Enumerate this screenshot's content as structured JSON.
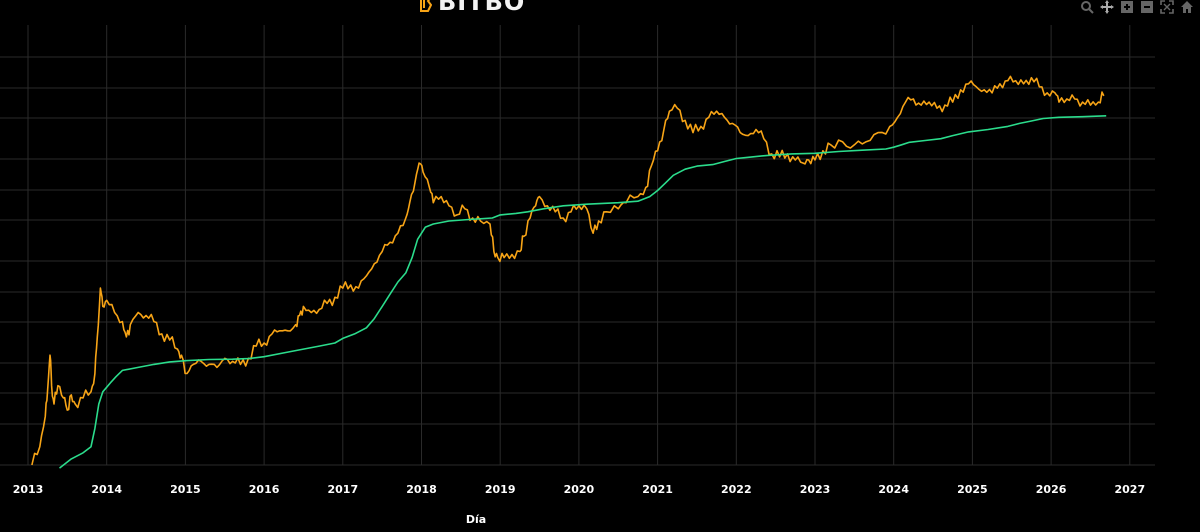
{
  "brand": {
    "name": "BITBO"
  },
  "modebar": {
    "items": [
      {
        "icon": "zoom-icon"
      },
      {
        "icon": "pan-icon"
      },
      {
        "icon": "zoom-in-icon"
      },
      {
        "icon": "zoom-out-icon"
      },
      {
        "icon": "autoscale-icon"
      },
      {
        "icon": "home-icon"
      }
    ]
  },
  "chart_data": {
    "type": "line",
    "xlabel": "Día",
    "ylabel": "",
    "x_ticks": [
      "2013",
      "2014",
      "2015",
      "2016",
      "2017",
      "2018",
      "2019",
      "2020",
      "2021",
      "2022",
      "2023",
      "2024",
      "2025",
      "2026",
      "2027"
    ],
    "xlim": [
      2013.0,
      2027.0
    ],
    "y_scale": "log",
    "ylim": [
      0,
      10
    ],
    "grid": true,
    "background": "#000000",
    "series": [
      {
        "color": "#f7a416",
        "points": [
          [
            2013.05,
            0.0
          ],
          [
            2013.15,
            0.6
          ],
          [
            2013.22,
            1.6
          ],
          [
            2013.25,
            2.5
          ],
          [
            2013.28,
            3.6
          ],
          [
            2013.3,
            2.6
          ],
          [
            2013.33,
            2.0
          ],
          [
            2013.38,
            2.6
          ],
          [
            2013.45,
            2.2
          ],
          [
            2013.5,
            1.8
          ],
          [
            2013.55,
            2.3
          ],
          [
            2013.6,
            2.0
          ],
          [
            2013.7,
            2.2
          ],
          [
            2013.8,
            2.4
          ],
          [
            2013.85,
            3.0
          ],
          [
            2013.88,
            4.2
          ],
          [
            2013.92,
            5.8
          ],
          [
            2013.95,
            5.2
          ],
          [
            2014.0,
            5.4
          ],
          [
            2014.1,
            5.0
          ],
          [
            2014.2,
            4.7
          ],
          [
            2014.25,
            4.2
          ],
          [
            2014.3,
            4.6
          ],
          [
            2014.4,
            5.0
          ],
          [
            2014.5,
            4.9
          ],
          [
            2014.6,
            4.7
          ],
          [
            2014.7,
            4.3
          ],
          [
            2014.8,
            4.1
          ],
          [
            2014.9,
            3.8
          ],
          [
            2014.95,
            3.6
          ],
          [
            2015.02,
            3.0
          ],
          [
            2015.1,
            3.3
          ],
          [
            2015.2,
            3.4
          ],
          [
            2015.3,
            3.3
          ],
          [
            2015.4,
            3.2
          ],
          [
            2015.5,
            3.5
          ],
          [
            2015.6,
            3.4
          ],
          [
            2015.7,
            3.3
          ],
          [
            2015.8,
            3.5
          ],
          [
            2015.9,
            3.9
          ],
          [
            2016.0,
            4.0
          ],
          [
            2016.1,
            4.3
          ],
          [
            2016.2,
            4.4
          ],
          [
            2016.3,
            4.4
          ],
          [
            2016.4,
            4.6
          ],
          [
            2016.45,
            4.9
          ],
          [
            2016.5,
            5.2
          ],
          [
            2016.6,
            5.0
          ],
          [
            2016.7,
            5.1
          ],
          [
            2016.8,
            5.3
          ],
          [
            2016.9,
            5.5
          ],
          [
            2017.0,
            5.8
          ],
          [
            2017.1,
            5.9
          ],
          [
            2017.2,
            5.8
          ],
          [
            2017.3,
            6.2
          ],
          [
            2017.4,
            6.6
          ],
          [
            2017.5,
            7.0
          ],
          [
            2017.6,
            7.3
          ],
          [
            2017.7,
            7.6
          ],
          [
            2017.8,
            8.1
          ],
          [
            2017.85,
            8.6
          ],
          [
            2017.92,
            9.3
          ],
          [
            2017.97,
            9.9
          ],
          [
            2018.02,
            9.6
          ],
          [
            2018.1,
            9.1
          ],
          [
            2018.15,
            8.6
          ],
          [
            2018.25,
            8.8
          ],
          [
            2018.35,
            8.5
          ],
          [
            2018.45,
            8.2
          ],
          [
            2018.55,
            8.4
          ],
          [
            2018.65,
            8.1
          ],
          [
            2018.75,
            8.0
          ],
          [
            2018.87,
            7.9
          ],
          [
            2018.92,
            7.0
          ],
          [
            2018.97,
            6.8
          ],
          [
            2019.05,
            6.8
          ],
          [
            2019.15,
            6.9
          ],
          [
            2019.25,
            7.0
          ],
          [
            2019.3,
            7.5
          ],
          [
            2019.38,
            8.1
          ],
          [
            2019.45,
            8.5
          ],
          [
            2019.5,
            8.8
          ],
          [
            2019.6,
            8.5
          ],
          [
            2019.7,
            8.3
          ],
          [
            2019.8,
            8.1
          ],
          [
            2019.9,
            8.3
          ],
          [
            2020.0,
            8.5
          ],
          [
            2020.1,
            8.4
          ],
          [
            2020.18,
            7.6
          ],
          [
            2020.25,
            8.0
          ],
          [
            2020.35,
            8.3
          ],
          [
            2020.5,
            8.4
          ],
          [
            2020.6,
            8.6
          ],
          [
            2020.75,
            8.8
          ],
          [
            2020.85,
            9.1
          ],
          [
            2020.92,
            9.8
          ],
          [
            2021.0,
            10.3
          ],
          [
            2021.08,
            11.0
          ],
          [
            2021.15,
            11.6
          ],
          [
            2021.25,
            11.7
          ],
          [
            2021.35,
            11.3
          ],
          [
            2021.45,
            10.9
          ],
          [
            2021.55,
            11.1
          ],
          [
            2021.65,
            11.4
          ],
          [
            2021.75,
            11.6
          ],
          [
            2021.85,
            11.4
          ],
          [
            2021.95,
            11.2
          ],
          [
            2022.05,
            10.9
          ],
          [
            2022.15,
            10.8
          ],
          [
            2022.25,
            11.0
          ],
          [
            2022.35,
            10.7
          ],
          [
            2022.45,
            10.2
          ],
          [
            2022.55,
            10.1
          ],
          [
            2022.65,
            10.2
          ],
          [
            2022.75,
            10.0
          ],
          [
            2022.85,
            9.9
          ],
          [
            2022.92,
            10.0
          ],
          [
            2023.0,
            10.0
          ],
          [
            2023.1,
            10.3
          ],
          [
            2023.2,
            10.5
          ],
          [
            2023.35,
            10.6
          ],
          [
            2023.5,
            10.5
          ],
          [
            2023.65,
            10.6
          ],
          [
            2023.8,
            10.9
          ],
          [
            2023.95,
            11.1
          ],
          [
            2024.05,
            11.4
          ],
          [
            2024.15,
            11.9
          ],
          [
            2024.25,
            12.0
          ],
          [
            2024.35,
            11.8
          ],
          [
            2024.45,
            11.9
          ],
          [
            2024.55,
            11.7
          ],
          [
            2024.65,
            11.8
          ],
          [
            2024.75,
            11.9
          ],
          [
            2024.85,
            12.3
          ],
          [
            2024.95,
            12.5
          ],
          [
            2025.05,
            12.4
          ],
          [
            2025.15,
            12.3
          ],
          [
            2025.25,
            12.2
          ],
          [
            2025.35,
            12.5
          ],
          [
            2025.45,
            12.6
          ],
          [
            2025.55,
            12.6
          ],
          [
            2025.65,
            12.5
          ],
          [
            2025.75,
            12.7
          ],
          [
            2025.85,
            12.4
          ],
          [
            2025.95,
            12.2
          ],
          [
            2026.05,
            12.2
          ],
          [
            2026.1,
            11.9
          ],
          [
            2026.2,
            12.0
          ],
          [
            2026.3,
            12.0
          ],
          [
            2026.4,
            11.9
          ],
          [
            2026.5,
            11.8
          ],
          [
            2026.6,
            11.9
          ],
          [
            2026.67,
            12.1
          ]
        ]
      },
      {
        "color": "#2bdc8c",
        "points": [
          [
            2013.4,
            -0.1
          ],
          [
            2013.55,
            0.2
          ],
          [
            2013.7,
            0.4
          ],
          [
            2013.8,
            0.6
          ],
          [
            2013.85,
            1.2
          ],
          [
            2013.9,
            2.0
          ],
          [
            2013.95,
            2.4
          ],
          [
            2014.05,
            2.7
          ],
          [
            2014.12,
            2.9
          ],
          [
            2014.2,
            3.1
          ],
          [
            2014.4,
            3.2
          ],
          [
            2014.6,
            3.3
          ],
          [
            2014.8,
            3.38
          ],
          [
            2015.0,
            3.42
          ],
          [
            2015.3,
            3.46
          ],
          [
            2015.6,
            3.47
          ],
          [
            2015.8,
            3.49
          ],
          [
            2016.0,
            3.55
          ],
          [
            2016.3,
            3.7
          ],
          [
            2016.5,
            3.8
          ],
          [
            2016.7,
            3.9
          ],
          [
            2016.9,
            4.0
          ],
          [
            2017.0,
            4.15
          ],
          [
            2017.15,
            4.3
          ],
          [
            2017.3,
            4.5
          ],
          [
            2017.4,
            4.8
          ],
          [
            2017.5,
            5.2
          ],
          [
            2017.6,
            5.6
          ],
          [
            2017.7,
            6.0
          ],
          [
            2017.8,
            6.3
          ],
          [
            2017.88,
            6.8
          ],
          [
            2017.95,
            7.4
          ],
          [
            2018.05,
            7.8
          ],
          [
            2018.15,
            7.9
          ],
          [
            2018.35,
            8.0
          ],
          [
            2018.6,
            8.05
          ],
          [
            2018.9,
            8.1
          ],
          [
            2019.0,
            8.2
          ],
          [
            2019.2,
            8.25
          ],
          [
            2019.35,
            8.3
          ],
          [
            2019.55,
            8.4
          ],
          [
            2019.8,
            8.5
          ],
          [
            2020.1,
            8.55
          ],
          [
            2020.5,
            8.6
          ],
          [
            2020.75,
            8.65
          ],
          [
            2020.9,
            8.8
          ],
          [
            2021.0,
            9.0
          ],
          [
            2021.1,
            9.25
          ],
          [
            2021.2,
            9.5
          ],
          [
            2021.35,
            9.7
          ],
          [
            2021.5,
            9.8
          ],
          [
            2021.7,
            9.85
          ],
          [
            2021.85,
            9.95
          ],
          [
            2022.0,
            10.05
          ],
          [
            2022.2,
            10.1
          ],
          [
            2022.4,
            10.15
          ],
          [
            2022.7,
            10.2
          ],
          [
            2023.0,
            10.22
          ],
          [
            2023.3,
            10.28
          ],
          [
            2023.6,
            10.32
          ],
          [
            2023.9,
            10.36
          ],
          [
            2024.0,
            10.42
          ],
          [
            2024.1,
            10.5
          ],
          [
            2024.2,
            10.58
          ],
          [
            2024.4,
            10.64
          ],
          [
            2024.6,
            10.7
          ],
          [
            2024.75,
            10.8
          ],
          [
            2024.95,
            10.92
          ],
          [
            2025.2,
            11.0
          ],
          [
            2025.45,
            11.1
          ],
          [
            2025.6,
            11.2
          ],
          [
            2025.75,
            11.28
          ],
          [
            2025.9,
            11.36
          ],
          [
            2026.1,
            11.4
          ],
          [
            2026.4,
            11.42
          ],
          [
            2026.7,
            11.45
          ]
        ]
      }
    ]
  }
}
